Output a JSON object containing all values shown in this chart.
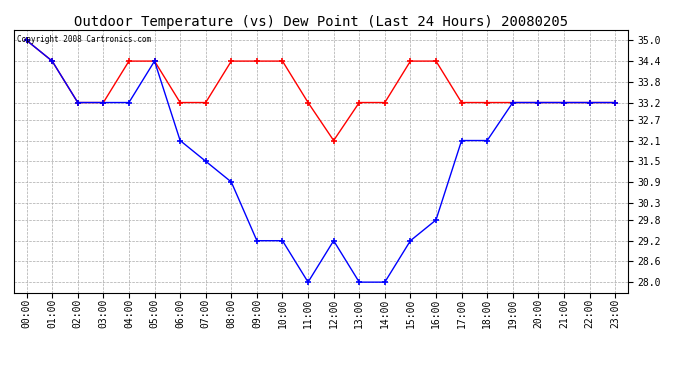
{
  "title": "Outdoor Temperature (vs) Dew Point (Last 24 Hours) 20080205",
  "copyright_text": "Copyright 2008 Cartronics.com",
  "hours": [
    "00:00",
    "01:00",
    "02:00",
    "03:00",
    "04:00",
    "05:00",
    "06:00",
    "07:00",
    "08:00",
    "09:00",
    "10:00",
    "11:00",
    "12:00",
    "13:00",
    "14:00",
    "15:00",
    "16:00",
    "17:00",
    "18:00",
    "19:00",
    "20:00",
    "21:00",
    "22:00",
    "23:00"
  ],
  "temp_red": [
    35.0,
    34.4,
    33.2,
    33.2,
    34.4,
    34.4,
    33.2,
    33.2,
    34.4,
    34.4,
    34.4,
    33.2,
    32.1,
    33.2,
    33.2,
    34.4,
    34.4,
    33.2,
    33.2,
    33.2,
    33.2,
    33.2,
    33.2,
    33.2
  ],
  "dew_blue": [
    35.0,
    34.4,
    33.2,
    33.2,
    33.2,
    34.4,
    32.1,
    31.5,
    30.9,
    29.2,
    29.2,
    28.0,
    29.2,
    28.0,
    28.0,
    29.2,
    29.8,
    32.1,
    32.1,
    33.2,
    33.2,
    33.2,
    33.2,
    33.2
  ],
  "ylim_min": 27.7,
  "ylim_max": 35.3,
  "yticks": [
    28.0,
    28.6,
    29.2,
    29.8,
    30.3,
    30.9,
    31.5,
    32.1,
    32.7,
    33.2,
    33.8,
    34.4,
    35.0
  ],
  "red_color": "#FF0000",
  "blue_color": "#0000FF",
  "bg_color": "#FFFFFF",
  "plot_bg_color": "#FFFFFF",
  "grid_color": "#AAAAAA",
  "title_fontsize": 10,
  "tick_fontsize": 7,
  "figwidth": 6.9,
  "figheight": 3.75,
  "dpi": 100
}
